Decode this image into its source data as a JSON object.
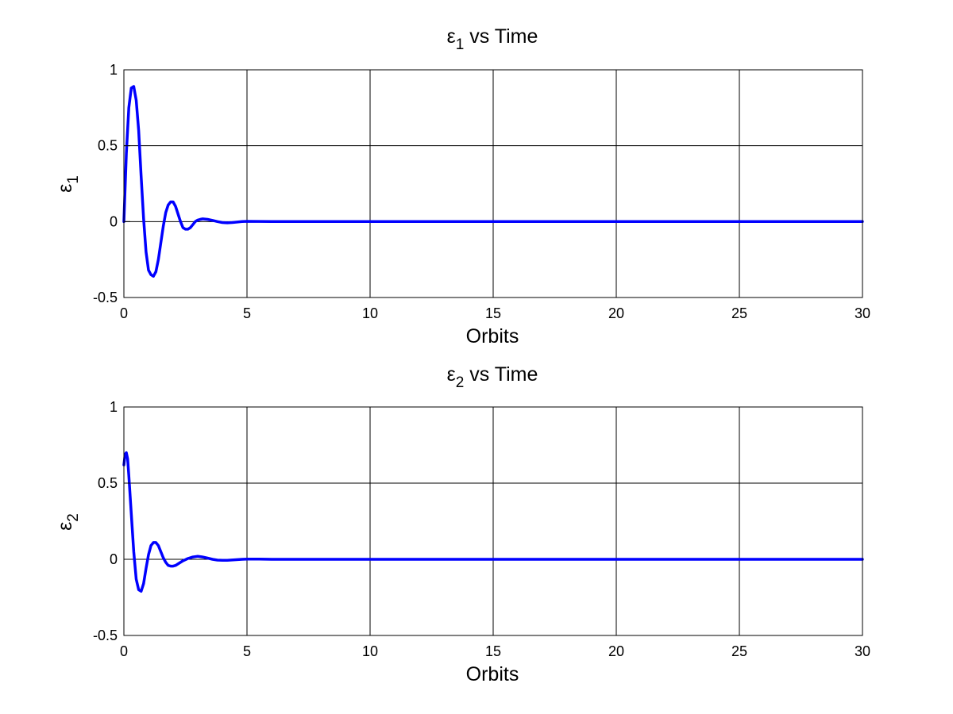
{
  "figure": {
    "background": "#ffffff",
    "line_color": "#0000ff",
    "grid_color": "#000000"
  },
  "chart_data": [
    {
      "type": "line",
      "title_symbol": "ε",
      "title_subscript": "1",
      "title_rest": " vs Time",
      "xlabel": "Orbits",
      "ylabel_symbol": "ε",
      "ylabel_subscript": "1",
      "xlim": [
        0,
        30
      ],
      "ylim": [
        -0.5,
        1
      ],
      "xticks": [
        0,
        5,
        10,
        15,
        20,
        25,
        30
      ],
      "yticks": [
        -0.5,
        0,
        0.5,
        1
      ],
      "xtick_labels": [
        "0",
        "5",
        "10",
        "15",
        "20",
        "25",
        "30"
      ],
      "ytick_labels": [
        "-0.5",
        "0",
        "0.5",
        "1"
      ],
      "grid": true,
      "series": [
        {
          "color": "#0000ff",
          "x": [
            0,
            0.1,
            0.2,
            0.3,
            0.4,
            0.5,
            0.6,
            0.7,
            0.8,
            0.9,
            1.0,
            1.1,
            1.2,
            1.3,
            1.4,
            1.5,
            1.6,
            1.7,
            1.8,
            1.9,
            2.0,
            2.1,
            2.2,
            2.3,
            2.4,
            2.5,
            2.6,
            2.7,
            2.8,
            2.9,
            3.0,
            3.1,
            3.2,
            3.4,
            3.6,
            3.8,
            4.0,
            4.2,
            4.4,
            4.6,
            4.8,
            5.0,
            5.5,
            6.0,
            8.0,
            10.0,
            15.0,
            20.0,
            25.0,
            30.0
          ],
          "y": [
            0.0,
            0.45,
            0.75,
            0.88,
            0.89,
            0.8,
            0.6,
            0.3,
            0.02,
            -0.2,
            -0.32,
            -0.35,
            -0.36,
            -0.33,
            -0.25,
            -0.14,
            -0.03,
            0.06,
            0.11,
            0.13,
            0.13,
            0.1,
            0.05,
            0.0,
            -0.04,
            -0.05,
            -0.05,
            -0.04,
            -0.02,
            0.0,
            0.01,
            0.015,
            0.018,
            0.015,
            0.008,
            0.0,
            -0.006,
            -0.008,
            -0.006,
            -0.003,
            0.0,
            0.002,
            0.001,
            0.0,
            0.0,
            0.0,
            0.0,
            0.0,
            0.0,
            0.0
          ]
        }
      ]
    },
    {
      "type": "line",
      "title_symbol": "ε",
      "title_subscript": "2",
      "title_rest": " vs Time",
      "xlabel": "Orbits",
      "ylabel_symbol": "ε",
      "ylabel_subscript": "2",
      "xlim": [
        0,
        30
      ],
      "ylim": [
        -0.5,
        1
      ],
      "xticks": [
        0,
        5,
        10,
        15,
        20,
        25,
        30
      ],
      "yticks": [
        -0.5,
        0,
        0.5,
        1
      ],
      "xtick_labels": [
        "0",
        "5",
        "10",
        "15",
        "20",
        "25",
        "30"
      ],
      "ytick_labels": [
        "-0.5",
        "0",
        "0.5",
        "1"
      ],
      "grid": true,
      "series": [
        {
          "color": "#0000ff",
          "x": [
            0,
            0.05,
            0.1,
            0.15,
            0.2,
            0.3,
            0.4,
            0.5,
            0.6,
            0.7,
            0.8,
            0.9,
            1.0,
            1.1,
            1.2,
            1.3,
            1.4,
            1.5,
            1.6,
            1.7,
            1.8,
            1.9,
            2.0,
            2.1,
            2.2,
            2.4,
            2.6,
            2.8,
            3.0,
            3.2,
            3.4,
            3.6,
            3.8,
            4.0,
            4.2,
            4.5,
            4.8,
            5.0,
            5.5,
            6.0,
            10.0,
            15.0,
            20.0,
            25.0,
            30.0
          ],
          "y": [
            0.62,
            0.69,
            0.7,
            0.66,
            0.55,
            0.3,
            0.05,
            -0.13,
            -0.2,
            -0.21,
            -0.16,
            -0.06,
            0.03,
            0.09,
            0.11,
            0.11,
            0.09,
            0.05,
            0.01,
            -0.02,
            -0.04,
            -0.045,
            -0.045,
            -0.04,
            -0.03,
            -0.01,
            0.005,
            0.015,
            0.02,
            0.015,
            0.008,
            0.0,
            -0.005,
            -0.007,
            -0.006,
            -0.003,
            0.0,
            0.001,
            0.001,
            0.0,
            0.0,
            0.0,
            0.0,
            0.0,
            0.0
          ]
        }
      ]
    }
  ]
}
